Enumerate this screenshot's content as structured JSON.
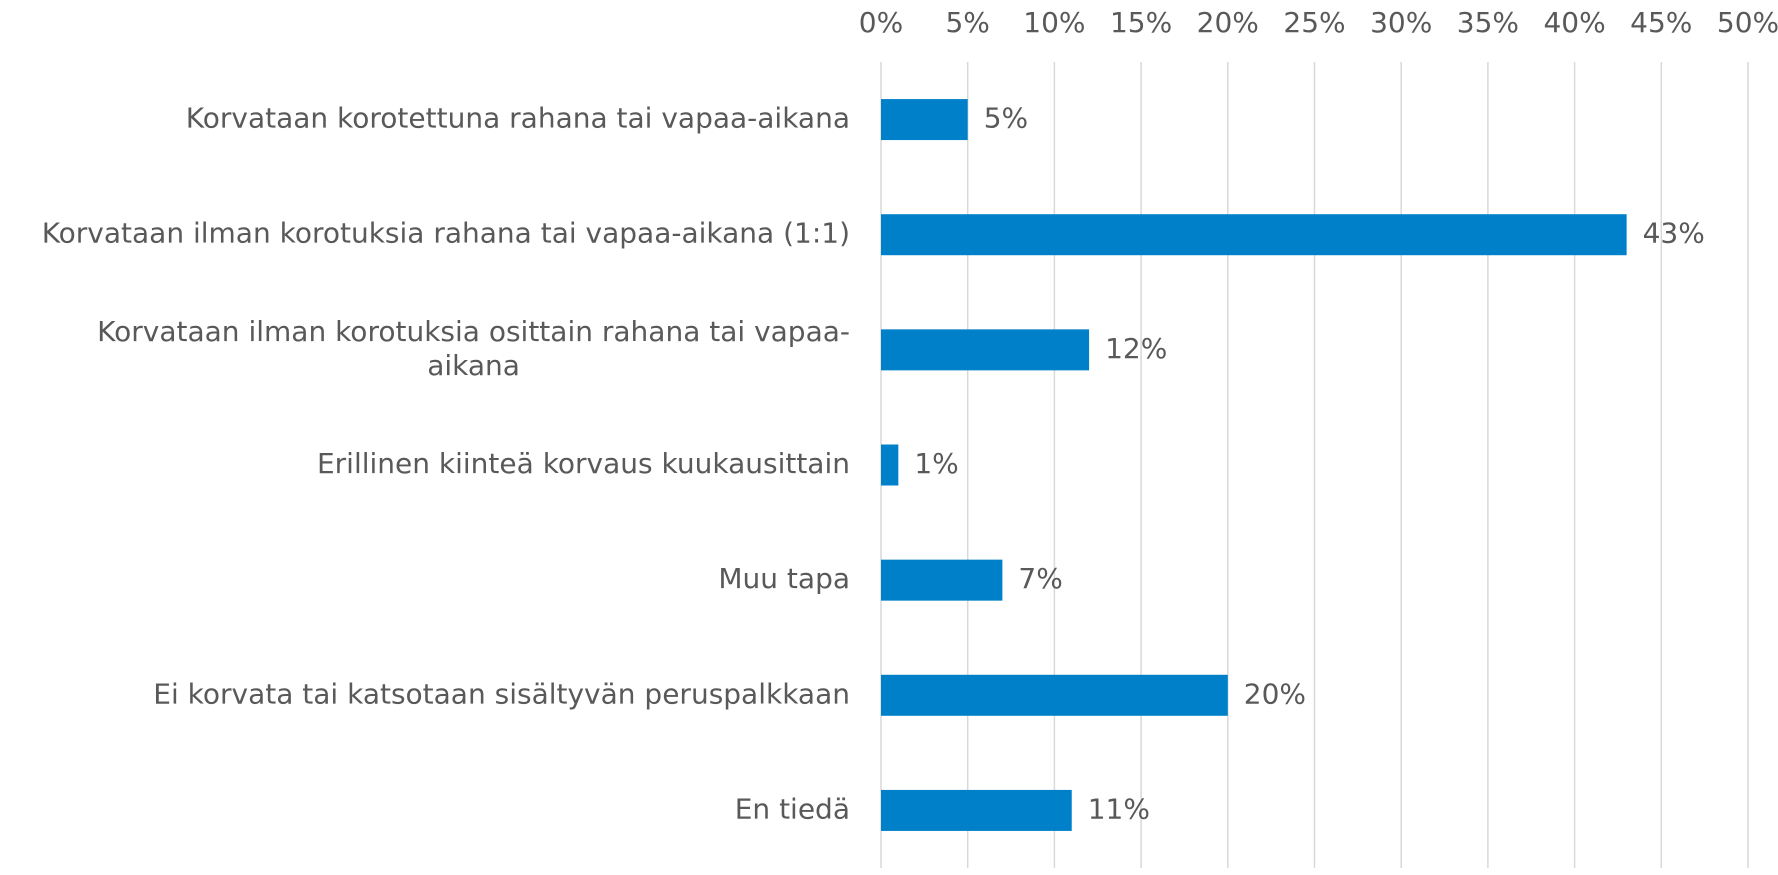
{
  "chart_data": {
    "type": "hbar",
    "categories": [
      "Korvataan korotettuna rahana tai vapaa-aikana",
      "Korvataan ilman korotuksia rahana tai vapaa-aikana (1:1)",
      "Korvataan ilman korotuksia osittain rahana tai vapaa-aikana",
      "Erillinen kiinteä korvaus kuukausittain",
      "Muu tapa",
      "Ei korvata tai katsotaan sisältyvän peruspalkkaan",
      "En tiedä"
    ],
    "values": [
      5,
      43,
      12,
      1,
      7,
      20,
      11
    ],
    "value_labels": [
      "5%",
      "43%",
      "12%",
      "1%",
      "7%",
      "20%",
      "11%"
    ],
    "color": "#0080c8",
    "xlim": [
      0,
      50
    ],
    "xticks": [
      {
        "value": 0,
        "label": "0%"
      },
      {
        "value": 5,
        "label": "5%"
      },
      {
        "value": 10,
        "label": "10%"
      },
      {
        "value": 15,
        "label": "15%"
      },
      {
        "value": 20,
        "label": "20%"
      },
      {
        "value": 25,
        "label": "25%"
      },
      {
        "value": 30,
        "label": "30%"
      },
      {
        "value": 35,
        "label": "35%"
      },
      {
        "value": 40,
        "label": "40%"
      },
      {
        "value": 45,
        "label": "45%"
      },
      {
        "value": 50,
        "label": "50%"
      }
    ],
    "grid": true
  }
}
